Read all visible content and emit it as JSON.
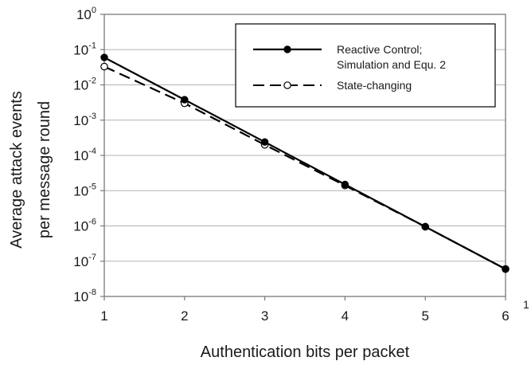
{
  "chart_data": {
    "type": "line",
    "title": "",
    "xlabel": "Authentication bits per packet",
    "ylabel_lines": [
      "Average attack events",
      "per message round"
    ],
    "x": [
      1,
      2,
      3,
      4,
      5,
      6
    ],
    "xlim": [
      1,
      6
    ],
    "x_ticks": [
      "1",
      "2",
      "3",
      "4",
      "5",
      "6"
    ],
    "y_scale": "log",
    "ylim": [
      1e-08,
      1
    ],
    "y_ticks": [
      {
        "base": "10",
        "exp": "0"
      },
      {
        "base": "10",
        "exp": "-1"
      },
      {
        "base": "10",
        "exp": "-2"
      },
      {
        "base": "10",
        "exp": "-3"
      },
      {
        "base": "10",
        "exp": "-4"
      },
      {
        "base": "10",
        "exp": "-5"
      },
      {
        "base": "10",
        "exp": "-6"
      },
      {
        "base": "10",
        "exp": "-7"
      },
      {
        "base": "10",
        "exp": "-8"
      }
    ],
    "grid": "horizontal",
    "legend_position": "top-right",
    "series": [
      {
        "name_lines": [
          "Reactive Control;",
          "Simulation and Equ. 2"
        ],
        "style": "solid",
        "marker": "filled-circle",
        "color": "#000000",
        "values": [
          0.06,
          0.0038,
          0.00024,
          1.5e-05,
          9.5e-07,
          6e-08
        ]
      },
      {
        "name_lines": [
          "State-changing"
        ],
        "style": "dashed",
        "marker": "open-circle",
        "color": "#000000",
        "values": [
          0.033,
          0.003,
          0.0002,
          1.4e-05,
          9.5e-07,
          6e-08
        ]
      }
    ]
  },
  "stray_label": "1"
}
